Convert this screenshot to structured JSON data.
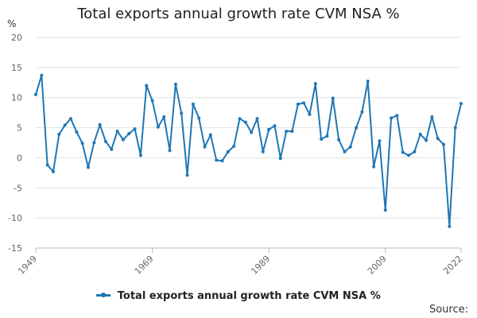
{
  "chart_data": {
    "type": "line",
    "title": "Total exports annual growth rate CVM NSA %",
    "ylabel": "%",
    "xlabel": "",
    "ylim": [
      -15,
      20
    ],
    "yticks": [
      20,
      15,
      10,
      5,
      0,
      -5,
      -10,
      -15
    ],
    "ytick_labels": [
      "20",
      "15",
      "10",
      "5",
      "0",
      "-5",
      "-10",
      "-15"
    ],
    "xlim": [
      1949,
      2022
    ],
    "xticks": [
      1949,
      1969,
      1989,
      2009,
      2022
    ],
    "xtick_labels": [
      "1949",
      "1969",
      "1989",
      "2009",
      "2022"
    ],
    "grid": true,
    "legend_position": "bottom",
    "color": "#1f77b4",
    "series": [
      {
        "name": "Total exports annual growth rate CVM NSA %",
        "x": [
          1949,
          1950,
          1951,
          1952,
          1953,
          1954,
          1955,
          1956,
          1957,
          1958,
          1959,
          1960,
          1961,
          1962,
          1963,
          1964,
          1965,
          1966,
          1967,
          1968,
          1969,
          1970,
          1971,
          1972,
          1973,
          1974,
          1975,
          1976,
          1977,
          1978,
          1979,
          1980,
          1981,
          1982,
          1983,
          1984,
          1985,
          1986,
          1987,
          1988,
          1989,
          1990,
          1991,
          1992,
          1993,
          1994,
          1995,
          1996,
          1997,
          1998,
          1999,
          2000,
          2001,
          2002,
          2003,
          2004,
          2005,
          2006,
          2007,
          2008,
          2009,
          2010,
          2011,
          2012,
          2013,
          2014,
          2015,
          2016,
          2017,
          2018,
          2019,
          2020,
          2021,
          2022
        ],
        "values": [
          10.5,
          13.7,
          -1.2,
          -2.3,
          3.9,
          5.4,
          6.5,
          4.3,
          2.4,
          -1.6,
          2.5,
          5.5,
          2.7,
          1.4,
          4.4,
          3.0,
          4.0,
          4.8,
          0.4,
          12.0,
          9.5,
          5.1,
          6.8,
          1.2,
          12.2,
          7.4,
          -2.9,
          8.9,
          6.6,
          1.8,
          3.8,
          -0.4,
          -0.5,
          1.0,
          1.9,
          6.5,
          5.9,
          4.2,
          6.5,
          1.0,
          4.7,
          5.3,
          -0.1,
          4.4,
          4.4,
          8.9,
          9.1,
          7.2,
          12.3,
          3.1,
          3.6,
          9.9,
          3.0,
          1.0,
          1.8,
          5.0,
          7.6,
          12.7,
          -1.5,
          2.8,
          -8.7,
          6.6,
          7.0,
          0.9,
          0.4,
          1.0,
          3.9,
          2.9,
          6.8,
          3.2,
          2.2,
          -11.4,
          5.0,
          9.0
        ]
      }
    ]
  },
  "legend": {
    "label": "Total exports annual growth rate CVM NSA %"
  },
  "source_label": "Source:"
}
